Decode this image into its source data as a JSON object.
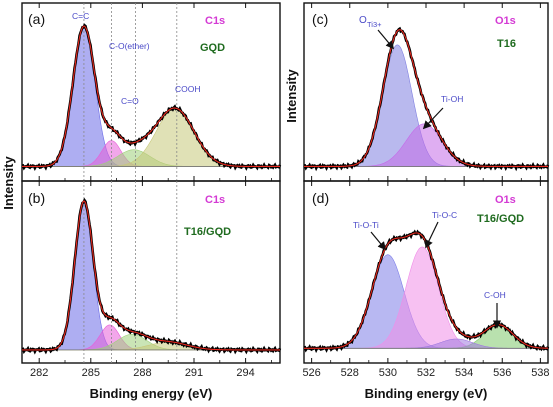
{
  "chart_data": [
    {
      "panel": "(a)",
      "type": "line",
      "element": "C1s",
      "sample": "GQD",
      "xlabel": "Binding energy (eV)",
      "ylabel": "Intensity",
      "xlim": [
        281,
        296
      ],
      "xticks": [
        282,
        285,
        288,
        291,
        294
      ],
      "reference_lines": [
        284.6,
        286.2,
        287.6,
        290.0
      ],
      "series": [
        {
          "name": "C=C",
          "type": "gaussian",
          "center": 284.6,
          "fwhm": 1.5,
          "height": 0.92,
          "color": "#6b6be8"
        },
        {
          "name": "C-O(ether)",
          "type": "gaussian",
          "center": 286.2,
          "fwhm": 1.3,
          "height": 0.17,
          "color": "#e85ed8"
        },
        {
          "name": "C=O",
          "type": "gaussian",
          "center": 287.5,
          "fwhm": 2.2,
          "height": 0.11,
          "color": "#9fd07a"
        },
        {
          "name": "COOH",
          "type": "gaussian",
          "center": 289.9,
          "fwhm": 2.6,
          "height": 0.38,
          "color": "#c7c87a"
        }
      ],
      "baseline": 0.03,
      "annotations": [
        "C=C",
        "C-O(ether)",
        "C=O",
        "COOH"
      ]
    },
    {
      "panel": "(b)",
      "type": "line",
      "element": "C1s",
      "sample": "T16/GQD",
      "xlabel": "Binding energy (eV)",
      "ylabel": "Intensity",
      "xlim": [
        281,
        296
      ],
      "xticks": [
        282,
        285,
        288,
        291,
        294
      ],
      "reference_lines": [
        284.6,
        286.2,
        287.6,
        290.0
      ],
      "series": [
        {
          "type": "gaussian",
          "center": 284.6,
          "fwhm": 1.25,
          "height": 0.95,
          "color": "#6b6be8"
        },
        {
          "type": "gaussian",
          "center": 286.1,
          "fwhm": 1.3,
          "height": 0.16,
          "color": "#e85ed8"
        },
        {
          "type": "gaussian",
          "center": 287.4,
          "fwhm": 2.0,
          "height": 0.1,
          "color": "#9fd07a"
        },
        {
          "type": "gaussian",
          "center": 289.5,
          "fwhm": 2.6,
          "height": 0.05,
          "color": "#c7c87a"
        }
      ],
      "baseline": 0.02,
      "annotations": []
    },
    {
      "panel": "(c)",
      "type": "line",
      "element": "O1s",
      "sample": "T16",
      "xlabel": "Binding energy (eV)",
      "ylabel": "Intensity",
      "xlim": [
        525.6,
        538.4
      ],
      "xticks": [
        526,
        528,
        530,
        532,
        534,
        536,
        538
      ],
      "series": [
        {
          "name": "OTi3+",
          "type": "gaussian",
          "center": 530.5,
          "fwhm": 1.8,
          "height": 0.8,
          "color": "#8080e0"
        },
        {
          "name": "Ti-OH",
          "type": "gaussian",
          "center": 531.9,
          "fwhm": 2.2,
          "height": 0.28,
          "color": "#c56be8"
        }
      ],
      "baseline": 0.03,
      "annotations": [
        "O",
        "Ti3+",
        "Ti-OH"
      ]
    },
    {
      "panel": "(d)",
      "type": "line",
      "element": "O1s",
      "sample": "T16/GQD",
      "xlabel": "Binding energy (eV)",
      "ylabel": "Intensity",
      "xlim": [
        525.6,
        538.4
      ],
      "xticks": [
        526,
        528,
        530,
        532,
        534,
        536,
        538
      ],
      "series": [
        {
          "name": "Ti-O-Ti",
          "type": "gaussian",
          "center": 530.0,
          "fwhm": 2.0,
          "height": 0.6,
          "color": "#7d7de8"
        },
        {
          "name": "Ti-O-C",
          "type": "gaussian",
          "center": 531.8,
          "fwhm": 2.0,
          "height": 0.65,
          "color": "#f08ee8"
        },
        {
          "name": "C-OH",
          "type": "gaussian",
          "center": 535.8,
          "fwhm": 1.8,
          "height": 0.15,
          "color": "#7fc96b"
        },
        {
          "type": "gaussian",
          "center": 533.6,
          "fwhm": 2.0,
          "height": 0.06,
          "color": "#a07ae0"
        }
      ],
      "baseline": 0.03,
      "annotations": [
        "Ti-O-Ti",
        "Ti-O-C",
        "C-OH"
      ]
    }
  ]
}
